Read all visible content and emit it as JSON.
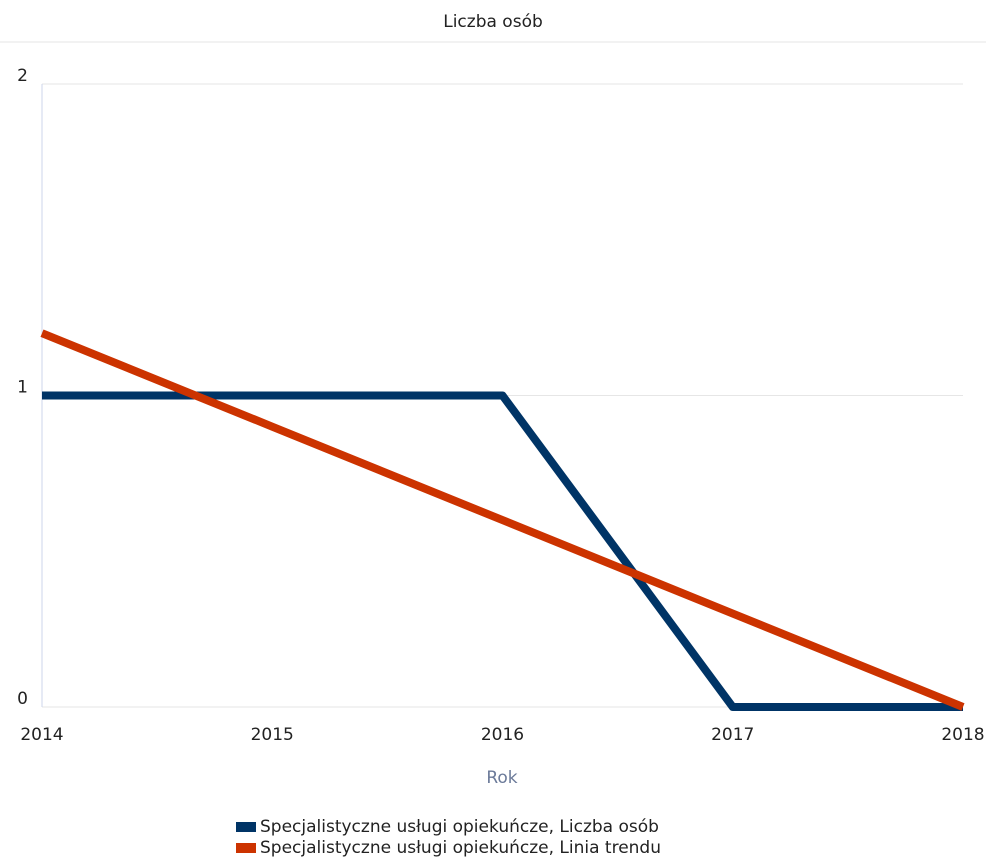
{
  "chart_data": {
    "type": "line",
    "title": "Liczba osób",
    "x_label": "Rok",
    "x": [
      2014,
      2015,
      2016,
      2017,
      2018
    ],
    "xlim": [
      2014,
      2018
    ],
    "xticks": [
      2014,
      2015,
      2016,
      2017,
      2018
    ],
    "ylim": [
      0,
      2
    ],
    "yticks": [
      0,
      1,
      2
    ],
    "grid": true,
    "series": [
      {
        "name": "Specjalistyczne usługi opiekuńcze, Liczba osób",
        "color": "#003466",
        "values": [
          1,
          1,
          1,
          0,
          0
        ]
      },
      {
        "name": "Specjalistyczne usługi opiekuńcze, Linia trendu",
        "color": "#cc3300",
        "values": [
          1.2,
          0.9,
          0.6,
          0.3,
          0
        ]
      }
    ]
  }
}
